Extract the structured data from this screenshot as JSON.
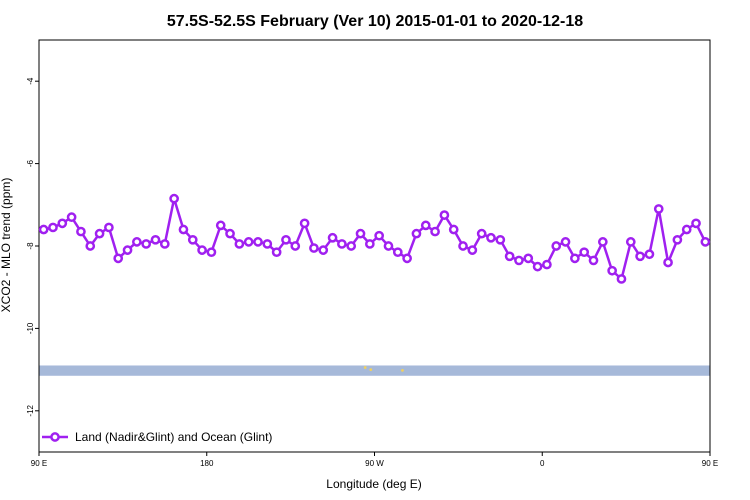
{
  "chart_data": {
    "type": "line",
    "title": "57.5S-52.5S February (Ver 10)   2015-01-01 to 2020-12-18",
    "xlabel": "Longitude (deg E)",
    "ylabel": "XCO2 - MLO trend (ppm)",
    "xlim": [
      90,
      450
    ],
    "ylim": [
      -13,
      -3
    ],
    "x_ticks": [
      {
        "value": 90,
        "label": "90 E"
      },
      {
        "value": 180,
        "label": "180"
      },
      {
        "value": 270,
        "label": "90 W"
      },
      {
        "value": 360,
        "label": "0"
      },
      {
        "value": 450,
        "label": "90 E"
      },
      {
        "value": 540,
        "label": "180"
      }
    ],
    "y_ticks": [
      {
        "value": -4,
        "label": "-4"
      },
      {
        "value": -6,
        "label": "-6"
      },
      {
        "value": -8,
        "label": "-8"
      },
      {
        "value": -10,
        "label": "-10"
      },
      {
        "value": -12,
        "label": "-12"
      }
    ],
    "legend_position": "bottom-left",
    "series": [
      {
        "name": "Land (Nadir&Glint) and Ocean (Glint)",
        "color": "#a020f0",
        "x": [
          92.5,
          97.5,
          102.5,
          107.5,
          112.5,
          117.5,
          122.5,
          127.5,
          132.5,
          137.5,
          142.5,
          147.5,
          152.5,
          157.5,
          162.5,
          167.5,
          172.5,
          177.5,
          182.5,
          187.5,
          192.5,
          197.5,
          202.5,
          207.5,
          212.5,
          217.5,
          222.5,
          227.5,
          232.5,
          237.5,
          242.5,
          247.5,
          252.5,
          257.5,
          262.5,
          267.5,
          272.5,
          277.5,
          282.5,
          287.5,
          292.5,
          297.5,
          302.5,
          307.5,
          312.5,
          317.5,
          322.5,
          327.5,
          332.5,
          337.5,
          342.5,
          347.5,
          352.5,
          357.5,
          362.5,
          367.5,
          372.5,
          377.5,
          382.5,
          387.5,
          392.5,
          397.5,
          402.5,
          407.5,
          412.5,
          417.5,
          422.5,
          427.5,
          432.5,
          437.5,
          442.5,
          447.5
        ],
        "y": [
          -7.6,
          -7.55,
          -7.45,
          -7.3,
          -7.65,
          -8.0,
          -7.7,
          -7.55,
          -8.3,
          -8.1,
          -7.9,
          -7.95,
          -7.85,
          -7.95,
          -6.85,
          -7.6,
          -7.85,
          -8.1,
          -8.15,
          -7.5,
          -7.7,
          -7.95,
          -7.9,
          -7.9,
          -7.95,
          -8.15,
          -7.85,
          -8.0,
          -7.45,
          -8.05,
          -8.1,
          -7.8,
          -7.95,
          -8.0,
          -7.7,
          -7.95,
          -7.75,
          -8.0,
          -8.15,
          -8.3,
          -7.7,
          -7.5,
          -7.65,
          -7.25,
          -7.6,
          -8.0,
          -8.1,
          -7.7,
          -7.8,
          -7.85,
          -8.25,
          -8.35,
          -8.3,
          -8.5,
          -8.45,
          -8.0,
          -7.9,
          -8.3,
          -8.15,
          -8.35,
          -7.9,
          -8.6,
          -8.8,
          -7.9,
          -8.25,
          -8.2,
          -7.1,
          -8.4,
          -7.85,
          -7.6,
          -7.45,
          -7.9
        ]
      }
    ],
    "bottom_band_color": "#a6b9d9",
    "band_marks_color": "#f0d060"
  }
}
